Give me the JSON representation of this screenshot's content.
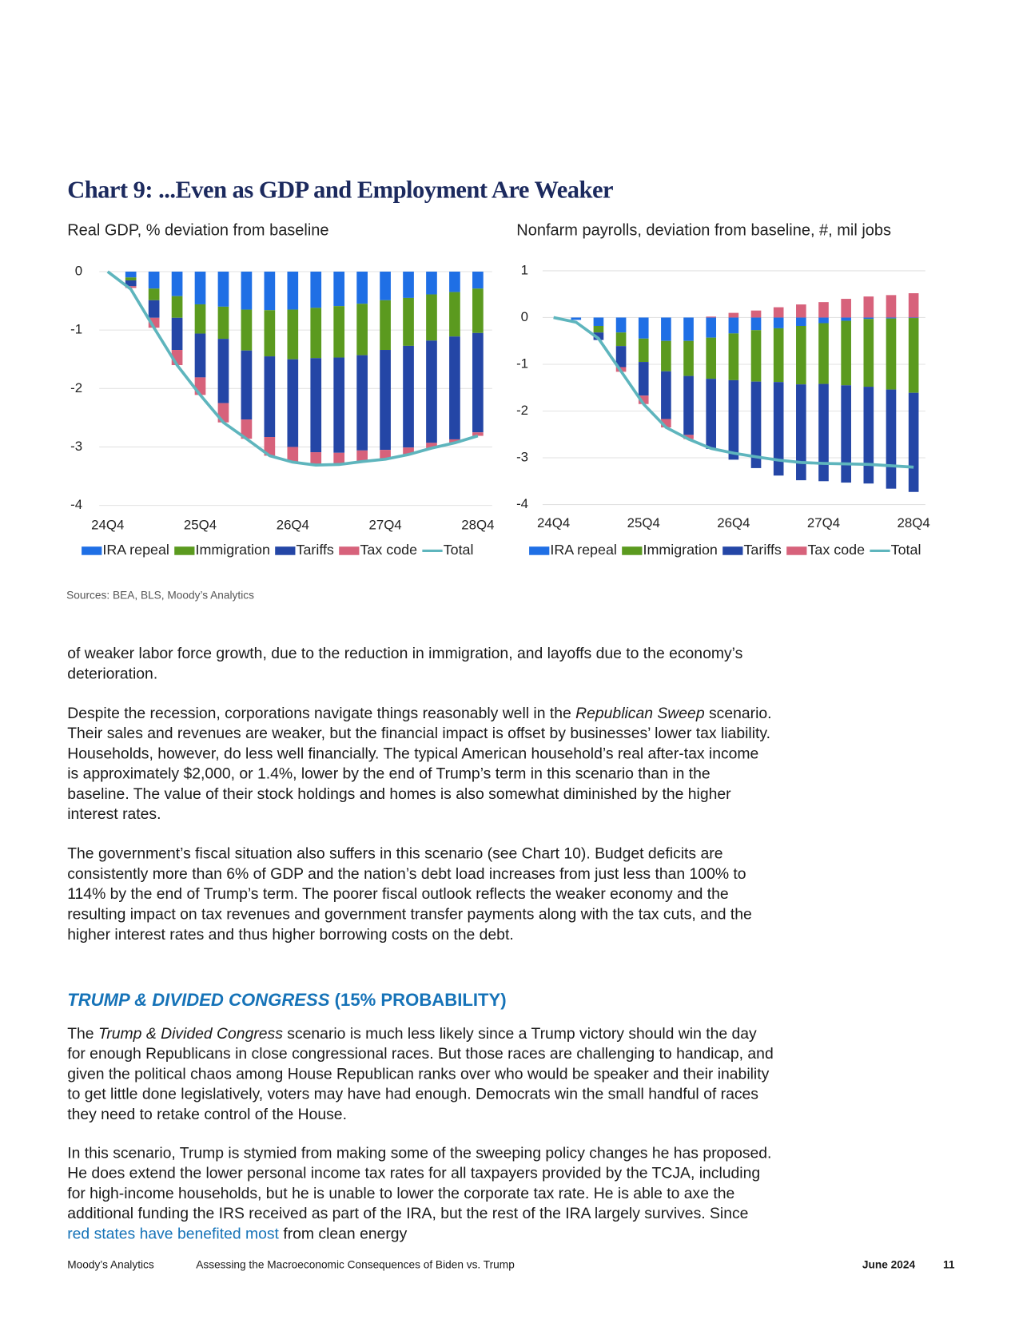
{
  "title": "Chart 9: ...Even as GDP and Employment Are Weaker",
  "chart_data": [
    {
      "type": "bar",
      "title": "Real GDP, % deviation from baseline",
      "categories": [
        "24Q4",
        null,
        null,
        null,
        "25Q4",
        null,
        null,
        null,
        "26Q4",
        null,
        null,
        null,
        "27Q4",
        null,
        null,
        null,
        "28Q4"
      ],
      "ylim": [
        -4,
        0
      ],
      "yticks": [
        0,
        -1,
        -2,
        -3,
        -4
      ],
      "grid": true,
      "series": [
        {
          "name": "IRA repeal",
          "color": "#1f6fe5",
          "type": "bar",
          "values": [
            0,
            -0.1,
            -0.29,
            -0.42,
            -0.56,
            -0.6,
            -0.65,
            -0.66,
            -0.65,
            -0.62,
            -0.59,
            -0.55,
            -0.49,
            -0.45,
            -0.39,
            -0.35,
            -0.29
          ]
        },
        {
          "name": "Immigration",
          "color": "#5b9a1f",
          "type": "bar",
          "values": [
            0,
            -0.05,
            -0.2,
            -0.37,
            -0.5,
            -0.55,
            -0.7,
            -0.79,
            -0.85,
            -0.86,
            -0.88,
            -0.88,
            -0.85,
            -0.82,
            -0.79,
            -0.76,
            -0.76
          ]
        },
        {
          "name": "Tariffs",
          "color": "#2446a6",
          "type": "bar",
          "values": [
            0,
            -0.1,
            -0.3,
            -0.55,
            -0.75,
            -1.1,
            -1.18,
            -1.38,
            -1.5,
            -1.61,
            -1.63,
            -1.63,
            -1.71,
            -1.74,
            -1.75,
            -1.76,
            -1.7
          ]
        },
        {
          "name": "Tax code",
          "color": "#d7627b",
          "type": "bar",
          "values": [
            0,
            -0.03,
            -0.17,
            -0.26,
            -0.3,
            -0.33,
            -0.33,
            -0.32,
            -0.26,
            -0.22,
            -0.2,
            -0.19,
            -0.16,
            -0.12,
            -0.09,
            -0.06,
            -0.06
          ]
        },
        {
          "name": "Total",
          "color": "#5eb5bd",
          "type": "line",
          "values": [
            0,
            -0.3,
            -0.96,
            -1.6,
            -2.11,
            -2.58,
            -2.86,
            -3.15,
            -3.26,
            -3.31,
            -3.3,
            -3.25,
            -3.21,
            -3.13,
            -3.02,
            -2.93,
            -2.81
          ]
        }
      ]
    },
    {
      "type": "bar",
      "title": "Nonfarm payrolls, deviation from baseline, #, mil jobs",
      "categories": [
        "24Q4",
        null,
        null,
        null,
        "25Q4",
        null,
        null,
        null,
        "26Q4",
        null,
        null,
        null,
        "27Q4",
        null,
        null,
        null,
        "28Q4"
      ],
      "ylim": [
        -4,
        1
      ],
      "yticks": [
        1,
        0,
        -1,
        -2,
        -3,
        -4
      ],
      "grid": true,
      "series": [
        {
          "name": "IRA repeal",
          "color": "#1f6fe5",
          "type": "bar",
          "values": [
            0,
            -0.05,
            -0.18,
            -0.32,
            -0.45,
            -0.5,
            -0.5,
            -0.43,
            -0.34,
            -0.27,
            -0.23,
            -0.18,
            -0.12,
            -0.07,
            -0.03,
            -0.02,
            -0.01
          ]
        },
        {
          "name": "Immigration",
          "color": "#5b9a1f",
          "type": "bar",
          "values": [
            0,
            0,
            -0.14,
            -0.29,
            -0.5,
            -0.65,
            -0.75,
            -0.88,
            -1.0,
            -1.1,
            -1.15,
            -1.25,
            -1.3,
            -1.38,
            -1.45,
            -1.52,
            -1.6
          ]
        },
        {
          "name": "Tariffs",
          "color": "#2446a6",
          "type": "bar",
          "values": [
            0,
            0,
            -0.16,
            -0.45,
            -0.72,
            -1.02,
            -1.26,
            -1.5,
            -1.7,
            -1.85,
            -2.0,
            -2.05,
            -2.08,
            -2.08,
            -2.07,
            -2.12,
            -2.12
          ]
        },
        {
          "name": "Tax code",
          "color": "#d7627b",
          "type": "bar",
          "values": [
            0,
            0,
            0,
            -0.1,
            -0.18,
            -0.18,
            -0.09,
            0.02,
            0.1,
            0.15,
            0.22,
            0.28,
            0.33,
            0.4,
            0.45,
            0.48,
            0.52
          ]
        },
        {
          "name": "Total",
          "color": "#5eb5bd",
          "type": "line",
          "values": [
            0,
            -0.1,
            -0.45,
            -1.15,
            -1.85,
            -2.35,
            -2.6,
            -2.8,
            -2.9,
            -2.98,
            -3.05,
            -3.1,
            -3.12,
            -3.13,
            -3.14,
            -3.17,
            -3.2
          ]
        }
      ]
    }
  ],
  "source": "Sources: BEA, BLS, Moody’s Analytics",
  "paragraphs": [
    [
      {
        "text": "of weaker labor force growth, due to the reduction in immigration, and layoffs due to the economy’s deterioration."
      }
    ],
    [
      {
        "text": "Despite the recession, corporations navigate things reasonably well in the "
      },
      {
        "text": "Republican Sweep",
        "style": "italic"
      },
      {
        "text": " scenario. Their sales and revenues are weaker, but the financial impact is offset by businesses’ lower tax liability. Households, however, do less well financially. The typical American household’s real after-tax income is approximately $2,000, or 1.4%, lower by the end of Trump’s term in this scenario than in the baseline. The value of their stock holdings and homes is also somewhat diminished by the higher interest rates."
      }
    ],
    [
      {
        "text": "The government’s fiscal situation also suffers in this scenario (see Chart 10). Budget deficits are consistently more than 6% of GDP and the nation’s debt load increases from just less than 100% to 114% by the end of Trump’s term. The poorer fiscal outlook reflects the weaker economy and the resulting impact on tax revenues and government transfer payments along with the tax cuts, and the higher interest rates and thus higher borrowing costs on the debt."
      }
    ],
    [
      {
        "text": "TRUMP & DIVIDED CONGRESS",
        "style": "italic"
      },
      {
        "text": " (15% PROBABILITY)"
      }
    ],
    [
      {
        "text": "The "
      },
      {
        "text": "Trump & Divided Congress",
        "style": "italic"
      },
      {
        "text": " scenario is much less likely since a Trump victory should win the day for enough Republicans in close congressional races. But those races are challenging to handicap, and given the political chaos among House Republican ranks over who would be speaker and their inability to get little done legislatively, voters may have had enough. Democrats win the small handful of races they need to retake control of the House."
      }
    ],
    [
      {
        "text": "In this scenario, Trump is stymied from making some of the sweeping policy changes he has proposed. He does extend the lower personal income tax rates for all taxpayers provided by the TCJA, including for high-income households, but he is unable to lower the corporate tax rate. He is able to axe the additional funding the IRS received as part of the IRA, but the rest of the IRA largely survives. Since "
      },
      {
        "text": "red states have benefited most",
        "style": "link"
      },
      {
        "text": " from clean energy"
      }
    ]
  ],
  "footer": {
    "publisher": "Moody’s Analytics",
    "report": "Assessing the Macroeconomic Consequences of Biden vs. Trump",
    "date": "June 2024",
    "page": "11"
  }
}
